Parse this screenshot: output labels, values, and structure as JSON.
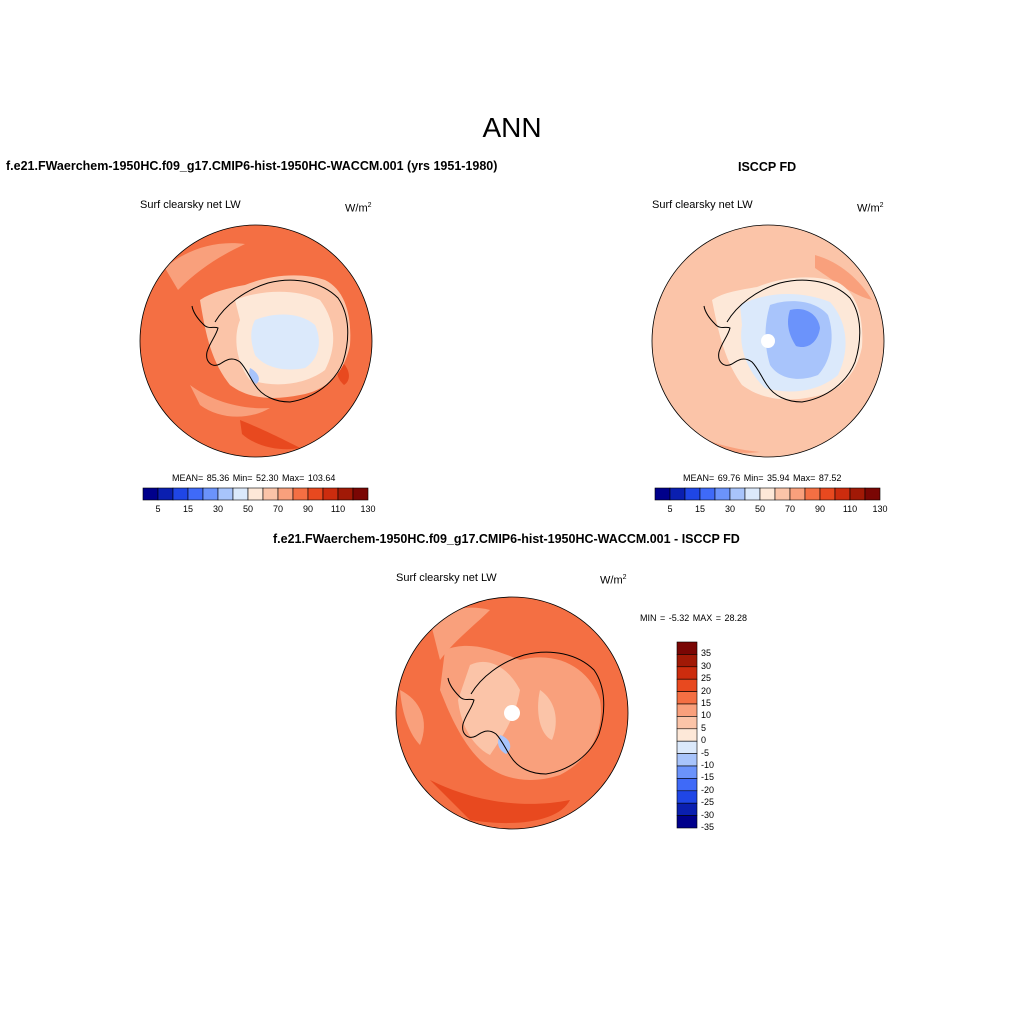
{
  "figure": {
    "title": "ANN"
  },
  "panels": {
    "model": {
      "title": "f.e21.FWaerchem-1950HC.f09_g17.CMIP6-hist-1950HC-WACCM.001 (yrs 1951-1980)",
      "variable": "Surf clearsky net LW",
      "units": "W/m",
      "units_sup": "2",
      "stats": "MEAN=  85.36  Min=  52.30  Max= 103.64",
      "colorbar_ticks": [
        "5",
        "15",
        "30",
        "50",
        "70",
        "90",
        "110",
        "130"
      ]
    },
    "obs": {
      "title": "ISCCP FD",
      "variable": "Surf clearsky net LW",
      "units": "W/m",
      "units_sup": "2",
      "stats": "MEAN=  69.76  Min=  35.94  Max=  87.52",
      "colorbar_ticks": [
        "5",
        "15",
        "30",
        "50",
        "70",
        "90",
        "110",
        "130"
      ]
    },
    "diff": {
      "title": "f.e21.FWaerchem-1950HC.f09_g17.CMIP6-hist-1950HC-WACCM.001 - ISCCP FD",
      "variable": "Surf clearsky net LW",
      "units": "W/m",
      "units_sup": "2",
      "stats": "MIN =  -5.32 MAX =  28.28",
      "colorbar_ticks": [
        "35",
        "30",
        "25",
        "20",
        "15",
        "10",
        "5",
        "0",
        "-5",
        "-10",
        "-15",
        "-20",
        "-25",
        "-30",
        "-35"
      ]
    }
  },
  "colors": {
    "abs_palette": [
      "#00008b",
      "#0a1fb0",
      "#1f46e6",
      "#3f6af8",
      "#6b93fb",
      "#a8c4fb",
      "#dbe9fb",
      "#fde8d8",
      "#fbc4a8",
      "#f9a07c",
      "#f46f43",
      "#e8491f",
      "#cc2c0e",
      "#a11906",
      "#7a0604"
    ],
    "diff_palette": [
      "#7a0604",
      "#a11906",
      "#cc2c0e",
      "#e8491f",
      "#f46f43",
      "#f9a07c",
      "#fbc4a8",
      "#fde8d8",
      "#dbe9fb",
      "#a8c4fb",
      "#6b93fb",
      "#3f6af8",
      "#1f46e6",
      "#0a1fb0",
      "#00008b"
    ]
  }
}
